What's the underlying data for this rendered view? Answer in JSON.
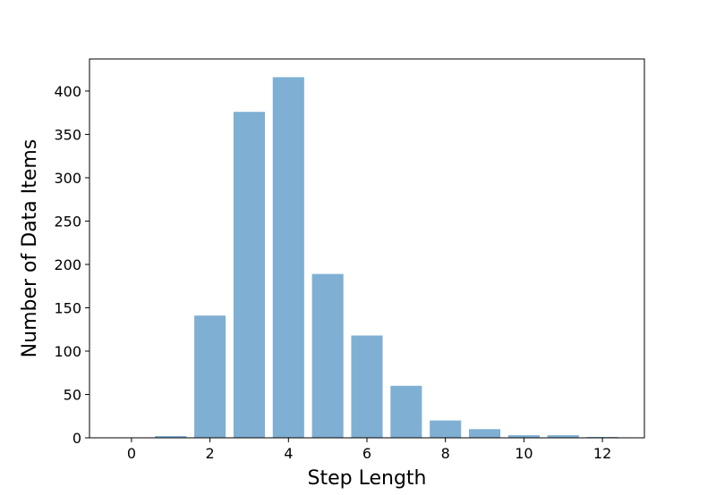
{
  "chart_data": {
    "type": "bar",
    "title": "",
    "xlabel": "Step Length",
    "ylabel": "Number of Data Items",
    "x": [
      0,
      1,
      2,
      3,
      4,
      5,
      6,
      7,
      8,
      9,
      10,
      11,
      12
    ],
    "values": [
      0,
      2,
      141,
      376,
      416,
      189,
      118,
      60,
      20,
      10,
      3,
      3,
      1
    ],
    "xlim": [
      -1.07,
      13.07
    ],
    "ylim": [
      0,
      437
    ],
    "xticks": [
      "0",
      "2",
      "4",
      "6",
      "8",
      "10",
      "12"
    ],
    "yticks": [
      "0",
      "50",
      "100",
      "150",
      "200",
      "250",
      "300",
      "350",
      "400"
    ],
    "bar_color": "#7fafd3",
    "grid": false,
    "legend": "none"
  }
}
